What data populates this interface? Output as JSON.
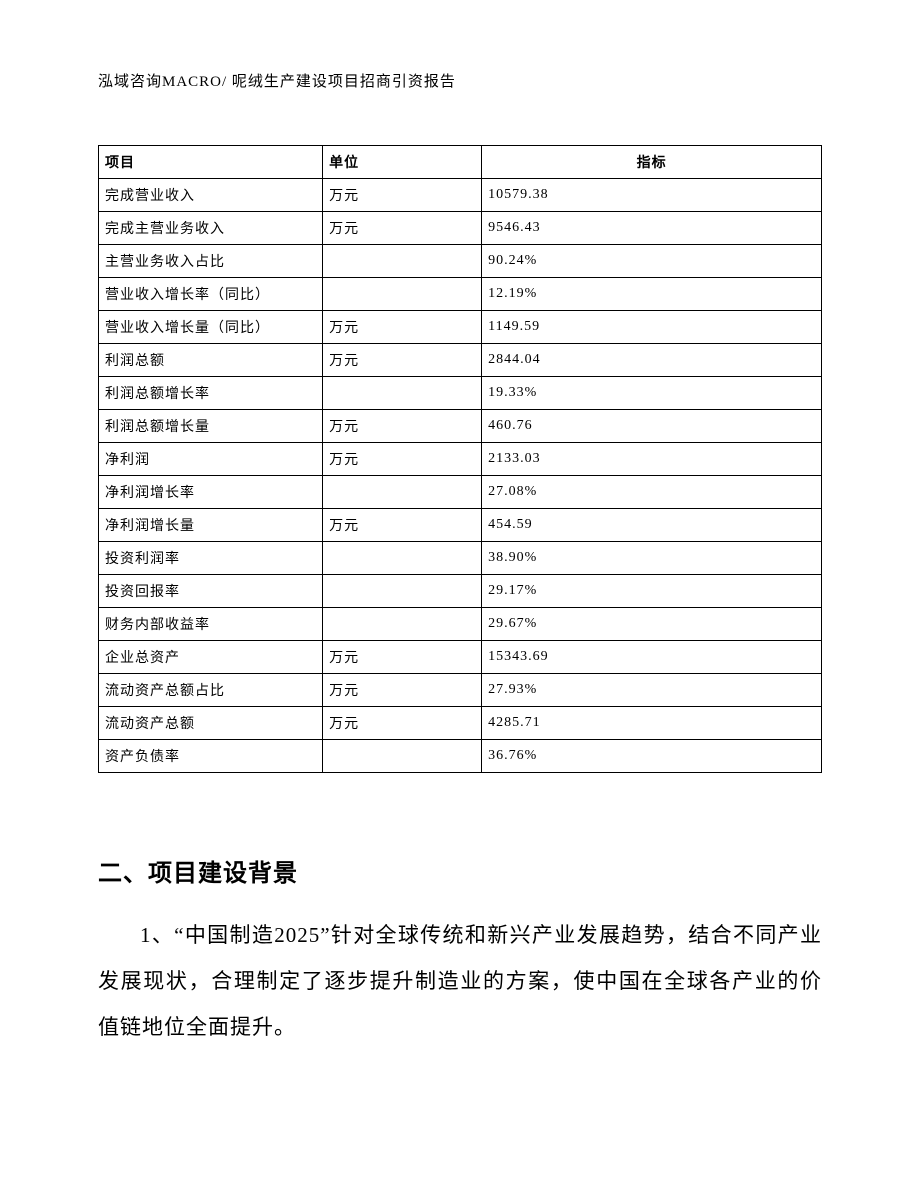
{
  "header": "泓域咨询MACRO/ 呢绒生产建设项目招商引资报告",
  "table": {
    "columns": [
      "项目",
      "单位",
      "指标"
    ],
    "rows": [
      [
        "完成营业收入",
        "万元",
        "10579.38"
      ],
      [
        "完成主营业务收入",
        "万元",
        "9546.43"
      ],
      [
        "主营业务收入占比",
        "",
        "90.24%"
      ],
      [
        "营业收入增长率（同比）",
        "",
        "12.19%"
      ],
      [
        "营业收入增长量（同比）",
        "万元",
        "1149.59"
      ],
      [
        "利润总额",
        "万元",
        "2844.04"
      ],
      [
        "利润总额增长率",
        "",
        "19.33%"
      ],
      [
        "利润总额增长量",
        "万元",
        "460.76"
      ],
      [
        "净利润",
        "万元",
        "2133.03"
      ],
      [
        "净利润增长率",
        "",
        "27.08%"
      ],
      [
        "净利润增长量",
        "万元",
        "454.59"
      ],
      [
        "投资利润率",
        "",
        "38.90%"
      ],
      [
        "投资回报率",
        "",
        "29.17%"
      ],
      [
        "财务内部收益率",
        "",
        "29.67%"
      ],
      [
        "企业总资产",
        "万元",
        "15343.69"
      ],
      [
        "流动资产总额占比",
        "万元",
        "27.93%"
      ],
      [
        "流动资产总额",
        "万元",
        "4285.71"
      ],
      [
        "资产负债率",
        "",
        "36.76%"
      ]
    ]
  },
  "section": {
    "heading": "二、项目建设背景",
    "paragraph": "1、“中国制造2025”针对全球传统和新兴产业发展趋势，结合不同产业发展现状，合理制定了逐步提升制造业的方案，使中国在全球各产业的价值链地位全面提升。"
  }
}
